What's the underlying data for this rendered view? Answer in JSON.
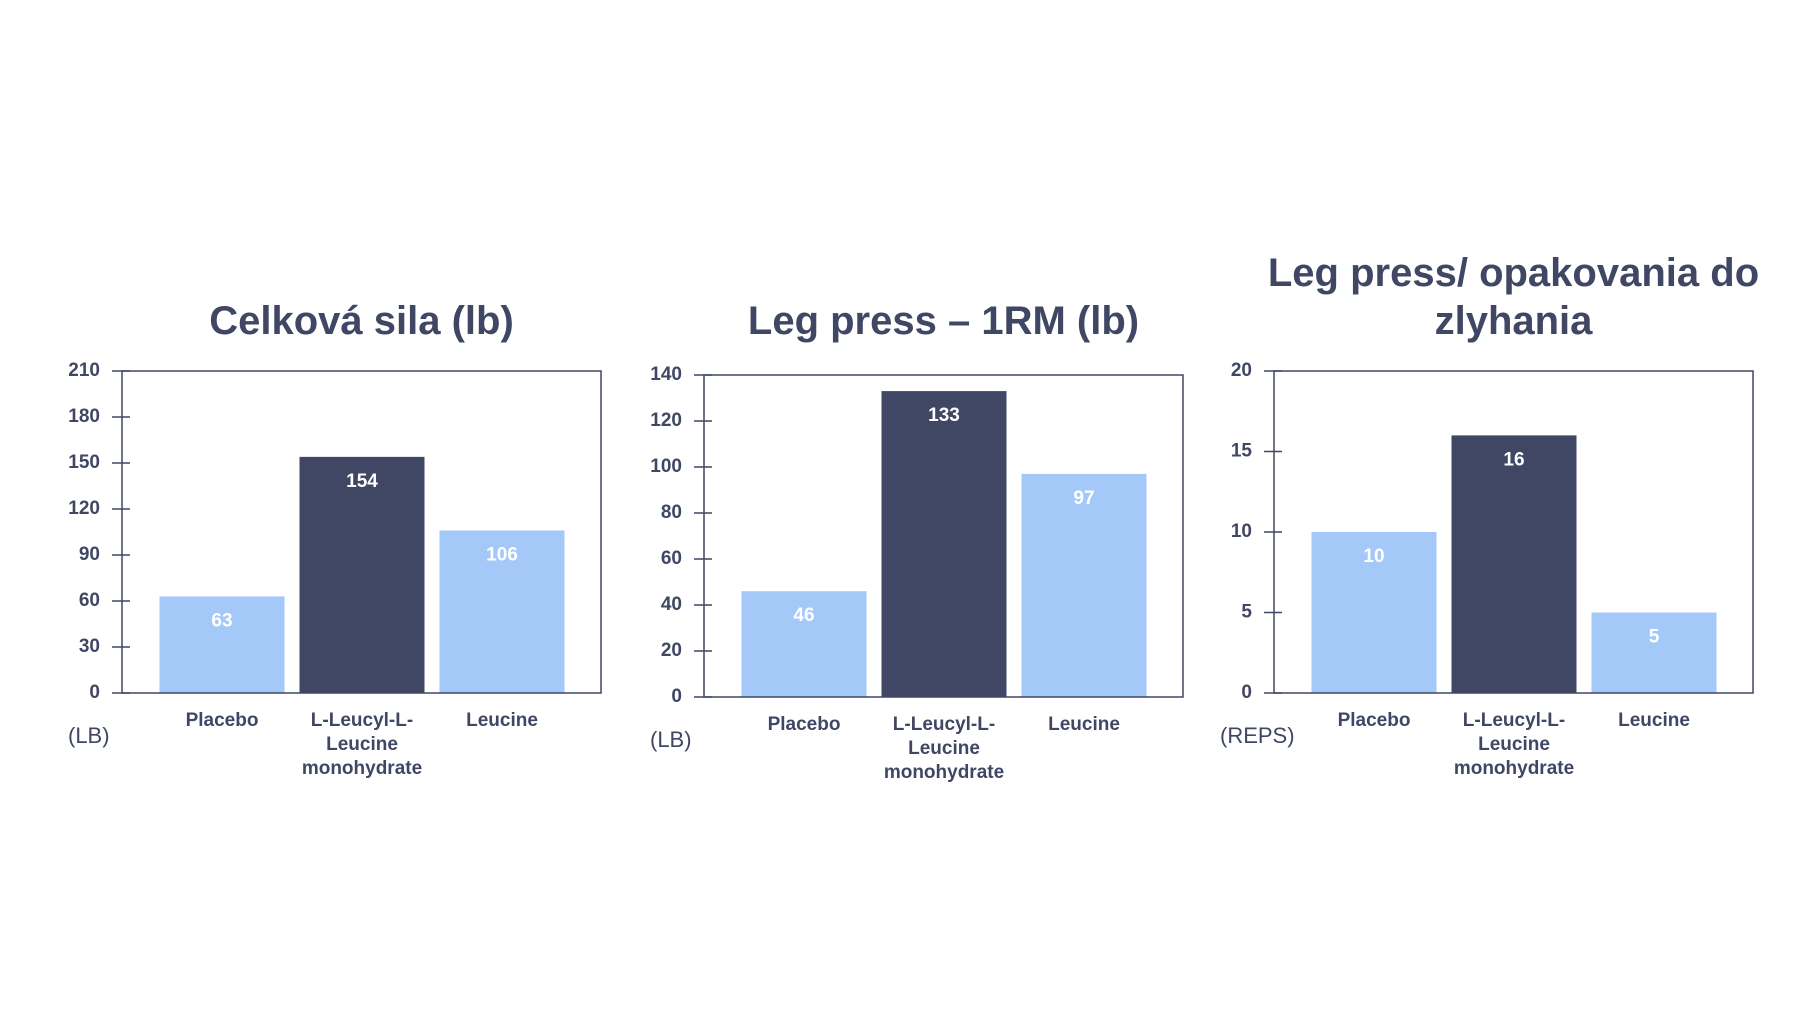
{
  "chart_data": [
    {
      "type": "bar",
      "title": "Celková sila (lb)",
      "unit_label": "(LB)",
      "categories": [
        "Placebo",
        "L-Leucyl-L-Leucine monohydrate",
        "Leucine"
      ],
      "values": [
        63,
        154,
        106
      ],
      "colors": [
        "#a4c8f8",
        "#404764",
        "#a4c8f8"
      ],
      "ylim": [
        0,
        210
      ],
      "yticks": [
        0,
        30,
        60,
        90,
        120,
        150,
        180,
        210
      ]
    },
    {
      "type": "bar",
      "title": "Leg press – 1RM (lb)",
      "unit_label": "(LB)",
      "categories": [
        "Placebo",
        "L-Leucyl-L-Leucine monohydrate",
        "Leucine"
      ],
      "values": [
        46,
        133,
        97
      ],
      "colors": [
        "#a4c8f8",
        "#404764",
        "#a4c8f8"
      ],
      "ylim": [
        0,
        140
      ],
      "yticks": [
        0,
        20,
        40,
        60,
        80,
        100,
        120,
        140
      ]
    },
    {
      "type": "bar",
      "title": "Leg press/ opakovania do zlyhania",
      "unit_label": "(REPS)",
      "categories": [
        "Placebo",
        "L-Leucyl-L-Leucine monohydrate",
        "Leucine"
      ],
      "values": [
        10,
        16,
        5
      ],
      "colors": [
        "#a4c8f8",
        "#404764",
        "#a4c8f8"
      ],
      "ylim": [
        0,
        20
      ],
      "yticks": [
        0,
        5,
        10,
        15,
        20
      ]
    }
  ]
}
